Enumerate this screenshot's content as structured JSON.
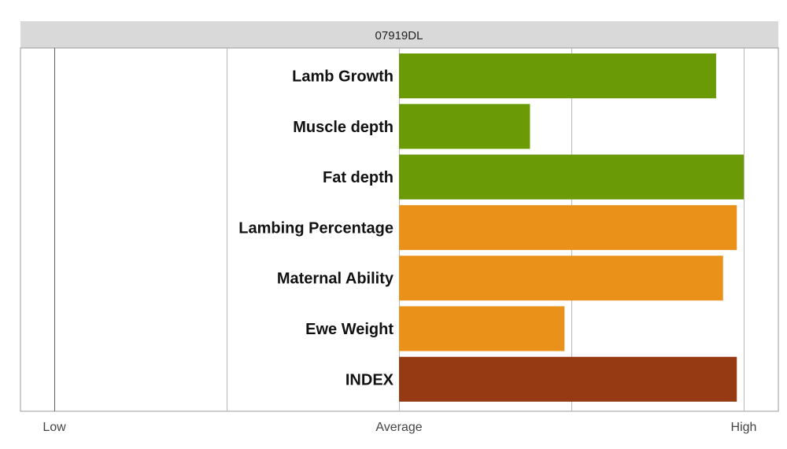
{
  "chart_data": {
    "type": "bar",
    "orientation": "horizontal",
    "title": "07919DL",
    "categories": [
      "Lamb Growth",
      "Muscle depth",
      "Fat depth",
      "Lambing Percentage",
      "Maternal Ability",
      "Ewe Weight",
      "INDEX"
    ],
    "values": [
      0.92,
      0.38,
      1.0,
      0.98,
      0.94,
      0.48,
      0.98
    ],
    "colors": [
      "#6a9a06",
      "#6a9a06",
      "#6a9a06",
      "#ea9119",
      "#ea9119",
      "#ea9119",
      "#953a12"
    ],
    "x_scale": {
      "min": -1,
      "max": 1,
      "baseline": 0,
      "gridlines": [
        -1,
        -0.5,
        0,
        0.5,
        1
      ]
    },
    "x_ticks": [
      {
        "value": -1,
        "label": "Low"
      },
      {
        "value": 0,
        "label": "Average"
      },
      {
        "value": 1,
        "label": "High"
      }
    ],
    "grid": true,
    "legend": "none"
  }
}
